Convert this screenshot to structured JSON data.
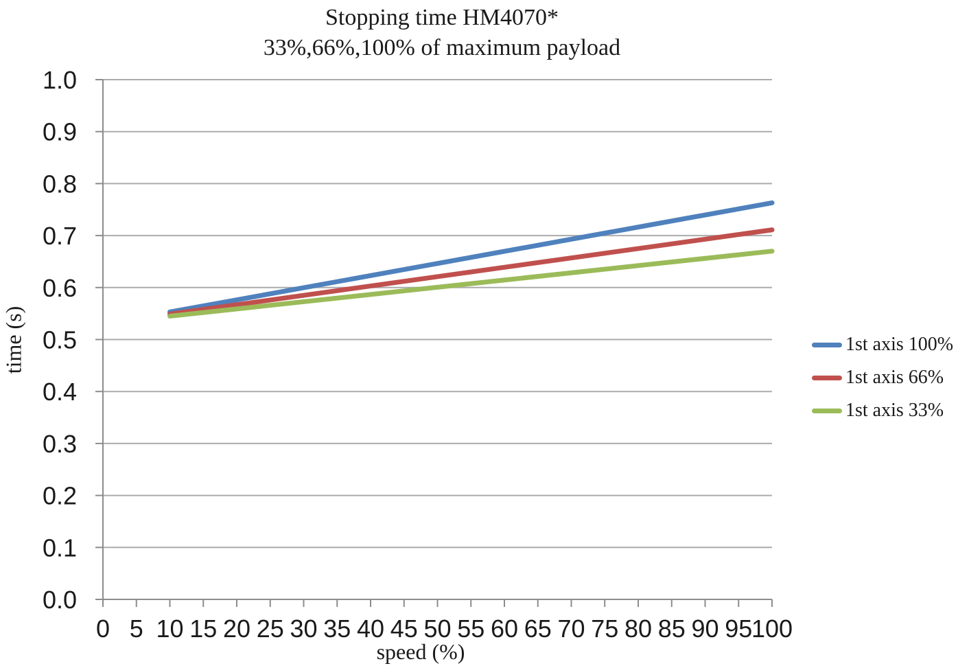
{
  "chart_data": {
    "type": "line",
    "title": "Stopping time HM4070*",
    "subtitle": "33%,66%,100% of maximum payload",
    "xlabel": "speed (%)",
    "ylabel": "time (s)",
    "xlim": [
      0,
      100
    ],
    "ylim": [
      0.0,
      1.0
    ],
    "x_ticks": [
      0,
      5,
      10,
      15,
      20,
      25,
      30,
      35,
      40,
      45,
      50,
      55,
      60,
      65,
      70,
      75,
      80,
      85,
      90,
      95,
      100
    ],
    "y_ticks": [
      "0.0",
      "0.1",
      "0.2",
      "0.3",
      "0.4",
      "0.5",
      "0.6",
      "0.7",
      "0.8",
      "0.9",
      "1.0"
    ],
    "grid": "horizontal",
    "legend_position": "right",
    "series": [
      {
        "name": "1st axis 100%",
        "color": "#4F81BD",
        "x": [
          10,
          100
        ],
        "values": [
          0.553,
          0.763
        ]
      },
      {
        "name": "1st axis 66%",
        "color": "#C0504D",
        "x": [
          10,
          100
        ],
        "values": [
          0.549,
          0.711
        ]
      },
      {
        "name": "1st axis 33%",
        "color": "#9BBB59",
        "x": [
          10,
          100
        ],
        "values": [
          0.545,
          0.67
        ]
      }
    ],
    "colors": {
      "background": "#FFFFFF",
      "gridline": "#ABABAB",
      "axis": "#8C8C8C",
      "text": "#1A1A1A"
    }
  }
}
